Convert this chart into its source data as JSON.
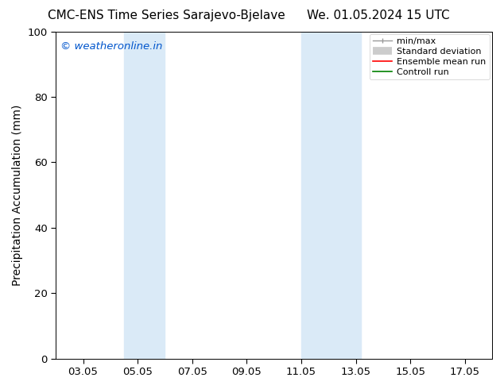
{
  "title_left": "CMC-ENS Time Series Sarajevo-Bjelave",
  "title_right": "We. 01.05.2024 15 UTC",
  "ylabel": "Precipitation Accumulation (mm)",
  "watermark": "© weatheronline.in",
  "watermark_color": "#0055cc",
  "ylim": [
    0,
    100
  ],
  "yticks": [
    0,
    20,
    40,
    60,
    80,
    100
  ],
  "xtick_labels": [
    "03.05",
    "05.05",
    "07.05",
    "09.05",
    "11.05",
    "13.05",
    "15.05",
    "17.05"
  ],
  "xtick_positions": [
    3,
    5,
    7,
    9,
    11,
    13,
    15,
    17
  ],
  "xlim": [
    2,
    18
  ],
  "shaded_bands": [
    {
      "x_start": 4.5,
      "x_end": 6.0,
      "color": "#daeaf7"
    },
    {
      "x_start": 11.0,
      "x_end": 13.2,
      "color": "#daeaf7"
    }
  ],
  "bg_color": "#ffffff",
  "plot_bg_color": "#ffffff",
  "title_fontsize": 11,
  "axis_label_fontsize": 10,
  "tick_fontsize": 9.5
}
